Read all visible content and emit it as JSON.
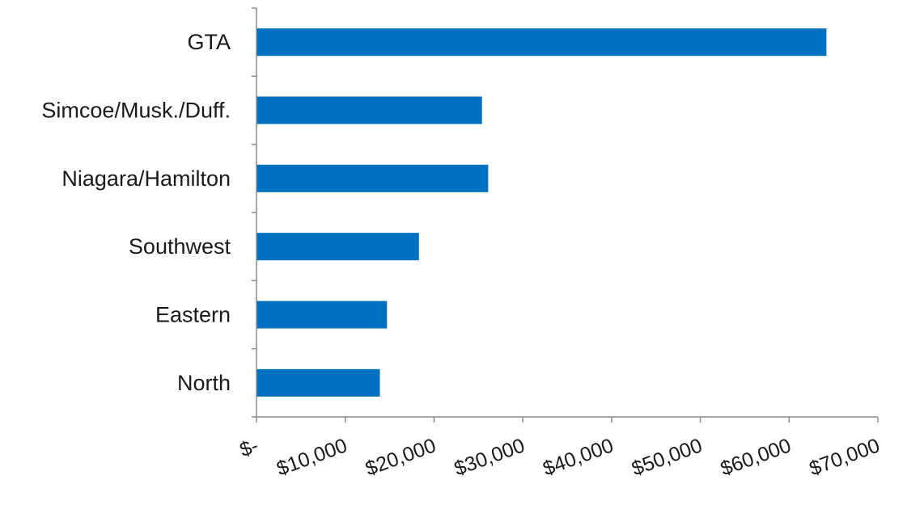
{
  "chart_data": {
    "type": "bar",
    "orientation": "horizontal",
    "categories": [
      "GTA",
      "Simcoe/Musk./Duff.",
      "Niagara/Hamilton",
      "Southwest",
      "Eastern",
      "North"
    ],
    "values": [
      64200,
      25400,
      26100,
      18300,
      14700,
      13900
    ],
    "xlim": [
      0,
      70000
    ],
    "x_ticks": [
      0,
      10000,
      20000,
      30000,
      40000,
      50000,
      60000,
      70000
    ],
    "x_tick_labels": [
      "$-",
      "$10,000",
      "$20,000",
      "$30,000",
      "$40,000",
      "$50,000",
      "$60,000",
      "$70,000"
    ],
    "bar_color": "#0070C0",
    "title": "",
    "xlabel": "",
    "ylabel": "",
    "grid": false,
    "legend": "none"
  }
}
